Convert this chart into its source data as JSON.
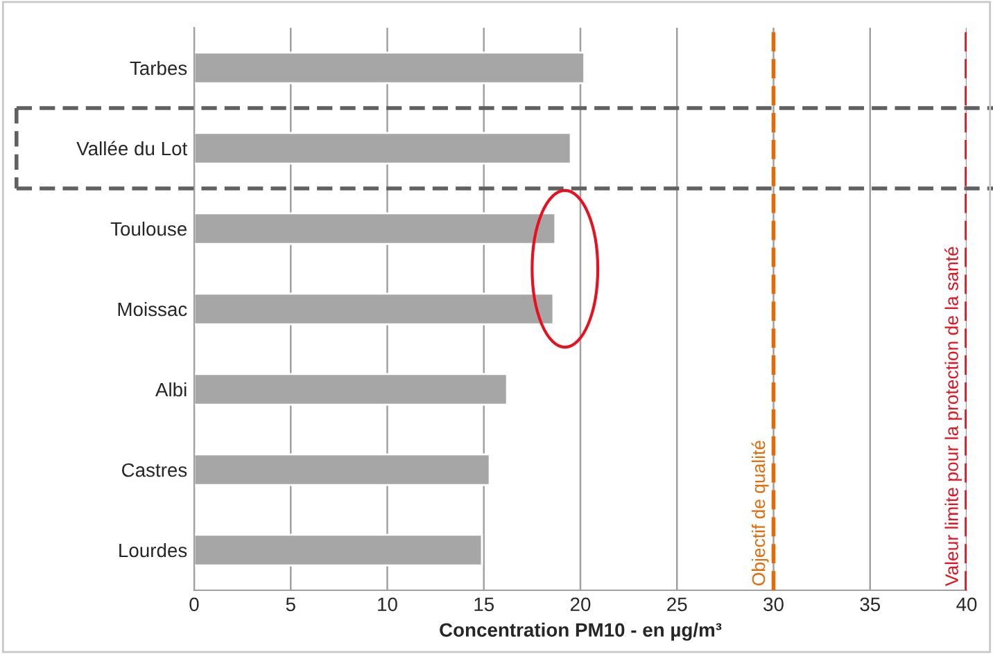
{
  "chart_data": {
    "type": "bar",
    "orientation": "horizontal",
    "xlabel": "Concentration PM10 - en µg/m³",
    "categories": [
      "Tarbes",
      "Vallée du Lot",
      "Toulouse",
      "Moissac",
      "Albi",
      "Castres",
      "Lourdes"
    ],
    "values": [
      20.2,
      19.5,
      18.7,
      18.6,
      16.2,
      15.3,
      14.9
    ],
    "color": "#a6a6a6",
    "xlim": [
      0,
      40
    ],
    "xticks": [
      0,
      5,
      10,
      15,
      20,
      25,
      30,
      35,
      40
    ],
    "grid": "x",
    "ref_lines": [
      {
        "axis": "x",
        "value": 30,
        "label": "Objectif de qualité",
        "color": "#e36c09",
        "line_style": "dashed"
      },
      {
        "axis": "x",
        "value": 40,
        "label": "Valeur limite pour la protection de la santé",
        "color": "#e8101e",
        "line_style": "dashed"
      }
    ]
  }
}
